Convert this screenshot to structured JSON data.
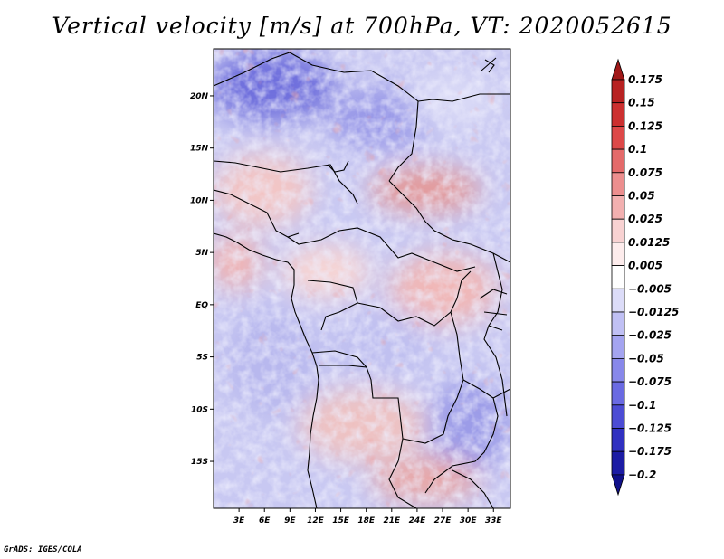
{
  "title": "Vertical velocity [m/s] at 700hPa, VT: 2020052615",
  "credit": "GrADS: IGES/COLA",
  "map": {
    "lat_labels": [
      "20N",
      "15N",
      "10N",
      "5N",
      "EQ",
      "5S",
      "10S",
      "15S"
    ],
    "lon_labels": [
      "3E",
      "6E",
      "9E",
      "12E",
      "15E",
      "18E",
      "21E",
      "24E",
      "27E",
      "30E",
      "33E"
    ],
    "lat_range": [
      -19.5,
      24.5
    ],
    "lon_range": [
      0,
      35
    ]
  },
  "colorbar": {
    "labels": [
      "0.175",
      "0.15",
      "0.125",
      "0.1",
      "0.075",
      "0.05",
      "0.025",
      "0.0125",
      "0.005",
      "−0.005",
      "−0.0125",
      "−0.025",
      "−0.05",
      "−0.075",
      "−0.1",
      "−0.125",
      "−0.175",
      "−0.2"
    ],
    "colors": [
      "#a01818",
      "#b82222",
      "#cc3030",
      "#dd4848",
      "#e46a6a",
      "#ec8e8e",
      "#f2b0b0",
      "#f8d2d2",
      "#fdecec",
      "#ffffff",
      "#dcdcf8",
      "#c0c0f4",
      "#a4a4f0",
      "#8888ea",
      "#6a6ae2",
      "#4c4cd4",
      "#3030c0",
      "#1c1ca4",
      "#10108a"
    ]
  }
}
